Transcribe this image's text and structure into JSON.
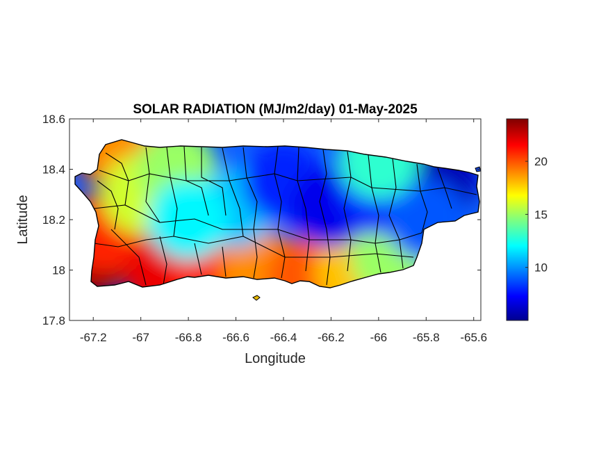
{
  "chart_data": {
    "type": "heatmap",
    "title": "SOLAR RADIATION (MJ/m2/day) 01-May-2025",
    "xlabel": "Longitude",
    "ylabel": "Latitude",
    "xlim": [
      -67.3,
      -65.57
    ],
    "ylim": [
      17.8,
      18.6
    ],
    "xticks": [
      -67.2,
      -67,
      -66.8,
      -66.6,
      -66.4,
      -66.2,
      -66,
      -65.8,
      -65.6
    ],
    "xtick_labels": [
      "-67.2",
      "-67",
      "-66.8",
      "-66.6",
      "-66.4",
      "-66.2",
      "-66",
      "-65.8",
      "-65.6"
    ],
    "yticks": [
      17.8,
      18,
      18.2,
      18.4,
      18.6
    ],
    "ytick_labels": [
      "17.8",
      "18",
      "18.2",
      "18.4",
      "18.6"
    ],
    "colorbar": {
      "colormap": "jet",
      "range": [
        5,
        24
      ],
      "ticks": [
        10,
        15,
        20
      ],
      "tick_labels": [
        "10",
        "15",
        "20"
      ]
    },
    "regions": [
      {
        "lon": -67.22,
        "lat": 18.05,
        "value": 23.5
      },
      {
        "lon": -67.15,
        "lat": 18.15,
        "value": 21
      },
      {
        "lon": -67.12,
        "lat": 18.49,
        "value": 22
      },
      {
        "lon": -67.05,
        "lat": 18.46,
        "value": 19
      },
      {
        "lon": -67.0,
        "lat": 18.3,
        "value": 16
      },
      {
        "lon": -66.85,
        "lat": 18.4,
        "value": 15
      },
      {
        "lon": -66.9,
        "lat": 17.98,
        "value": 22
      },
      {
        "lon": -66.7,
        "lat": 17.99,
        "value": 21
      },
      {
        "lon": -66.5,
        "lat": 18.0,
        "value": 19
      },
      {
        "lon": -66.3,
        "lat": 17.97,
        "value": 20
      },
      {
        "lon": -66.1,
        "lat": 17.99,
        "value": 18
      },
      {
        "lon": -65.95,
        "lat": 18.05,
        "value": 15
      },
      {
        "lon": -66.6,
        "lat": 18.25,
        "value": 11
      },
      {
        "lon": -66.4,
        "lat": 18.35,
        "value": 8
      },
      {
        "lon": -66.2,
        "lat": 18.25,
        "value": 7
      },
      {
        "lon": -66.0,
        "lat": 18.3,
        "value": 8
      },
      {
        "lon": -65.75,
        "lat": 18.35,
        "value": 6
      },
      {
        "lon": -65.8,
        "lat": 18.2,
        "value": 9
      },
      {
        "lon": -66.8,
        "lat": 18.2,
        "value": 12
      },
      {
        "lon": -66.0,
        "lat": 18.44,
        "value": 13
      }
    ]
  }
}
